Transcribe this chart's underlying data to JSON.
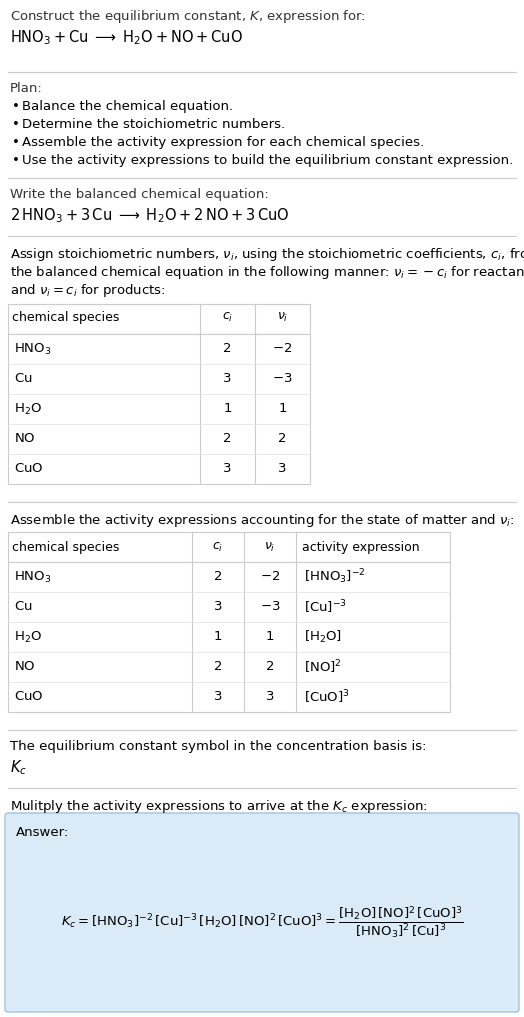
{
  "bg_color": "#ffffff",
  "text_color": "#000000",
  "table_border_color": "#cccccc",
  "answer_box_color": "#daeaf7",
  "answer_box_border": "#a0c4e0",
  "title_line1": "Construct the equilibrium constant, $K$, expression for:",
  "title_line2_plain": "HNO",
  "balanced_header": "Write the balanced chemical equation:",
  "plan_header": "Plan:",
  "plan_items": [
    "Balance the chemical equation.",
    "Determine the stoichiometric numbers.",
    "Assemble the activity expression for each chemical species.",
    "Use the activity expressions to build the equilibrium constant expression."
  ],
  "stoich_intro_lines": [
    "Assign stoichiometric numbers, $\\nu_i$, using the stoichiometric coefficients, $c_i$, from",
    "the balanced chemical equation in the following manner: $\\nu_i = -c_i$ for reactants",
    "and $\\nu_i = c_i$ for products:"
  ],
  "table1_headers": [
    "chemical species",
    "$c_i$",
    "$\\nu_i$"
  ],
  "table1_rows": [
    [
      "$\\mathrm{HNO_3}$",
      "2",
      "$-2$"
    ],
    [
      "$\\mathrm{Cu}$",
      "3",
      "$-3$"
    ],
    [
      "$\\mathrm{H_2O}$",
      "1",
      "1"
    ],
    [
      "$\\mathrm{NO}$",
      "2",
      "2"
    ],
    [
      "$\\mathrm{CuO}$",
      "3",
      "3"
    ]
  ],
  "activity_intro": "Assemble the activity expressions accounting for the state of matter and $\\nu_i$:",
  "table2_headers": [
    "chemical species",
    "$c_i$",
    "$\\nu_i$",
    "activity expression"
  ],
  "table2_rows": [
    [
      "$\\mathrm{HNO_3}$",
      "2",
      "$-2$",
      "$[\\mathrm{HNO_3}]^{-2}$"
    ],
    [
      "$\\mathrm{Cu}$",
      "3",
      "$-3$",
      "$[\\mathrm{Cu}]^{-3}$"
    ],
    [
      "$\\mathrm{H_2O}$",
      "1",
      "1",
      "$[\\mathrm{H_2O}]$"
    ],
    [
      "$\\mathrm{NO}$",
      "2",
      "2",
      "$[\\mathrm{NO}]^2$"
    ],
    [
      "$\\mathrm{CuO}$",
      "3",
      "3",
      "$[\\mathrm{CuO}]^3$"
    ]
  ],
  "kc_intro": "The equilibrium constant symbol in the concentration basis is:",
  "kc_symbol": "$K_c$",
  "multiply_intro": "Mulitply the activity expressions to arrive at the $K_c$ expression:",
  "answer_label": "Answer:",
  "answer_eq": "$K_c = [\\mathrm{HNO_3}]^{-2}\\,[\\mathrm{Cu}]^{-3}\\,[\\mathrm{H_2O}]\\,[\\mathrm{NO}]^2\\,[\\mathrm{CuO}]^3 = \\dfrac{[\\mathrm{H_2O}]\\,[\\mathrm{NO}]^2\\,[\\mathrm{CuO}]^3}{[\\mathrm{HNO_3}]^2\\,[\\mathrm{Cu}]^3}$"
}
